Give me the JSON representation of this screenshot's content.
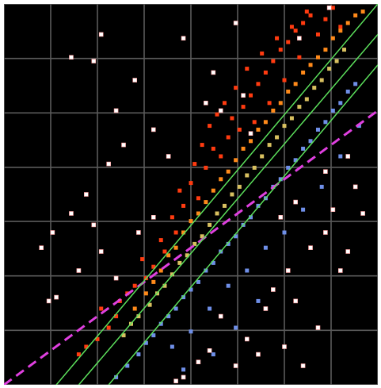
{
  "chart_data": {
    "type": "scatter",
    "title": "",
    "xlabel": "",
    "ylabel": "",
    "xlim": [
      0,
      100
    ],
    "ylim": [
      0,
      100
    ],
    "grid": true,
    "x_ticks": [
      0,
      12.5,
      25,
      37.5,
      50,
      62.5,
      75,
      87.5,
      100
    ],
    "y_ticks": [
      0,
      14.3,
      28.6,
      42.9,
      57.1,
      71.4,
      85.7,
      100
    ],
    "series": [
      {
        "color": "#ff3b10",
        "points": [
          [
            43,
            35
          ],
          [
            46,
            40
          ],
          [
            48,
            47
          ],
          [
            50,
            53
          ],
          [
            52,
            49
          ],
          [
            54,
            57
          ],
          [
            56,
            62
          ],
          [
            58,
            60
          ],
          [
            60,
            65
          ],
          [
            61,
            70
          ],
          [
            63,
            67
          ],
          [
            64,
            73
          ],
          [
            66,
            76
          ],
          [
            67,
            69
          ],
          [
            68,
            79
          ],
          [
            70,
            82
          ],
          [
            71,
            74
          ],
          [
            72,
            85
          ],
          [
            74,
            88
          ],
          [
            75,
            80
          ],
          [
            76,
            90
          ],
          [
            78,
            93
          ],
          [
            79,
            86
          ],
          [
            80,
            95
          ],
          [
            82,
            97
          ],
          [
            84,
            92
          ],
          [
            86,
            96
          ],
          [
            88,
            99
          ],
          [
            90,
            94
          ],
          [
            38,
            28
          ],
          [
            40,
            31
          ],
          [
            42,
            38
          ],
          [
            45,
            44
          ],
          [
            47,
            51
          ],
          [
            51,
            58
          ],
          [
            53,
            63
          ],
          [
            55,
            68
          ],
          [
            57,
            71
          ],
          [
            59,
            74
          ],
          [
            62,
            78
          ],
          [
            65,
            83
          ],
          [
            69,
            87
          ],
          [
            73,
            91
          ],
          [
            77,
            94
          ],
          [
            81,
            98
          ],
          [
            33,
            24
          ],
          [
            35,
            26
          ],
          [
            37,
            33
          ],
          [
            30,
            18
          ],
          [
            28,
            15
          ],
          [
            25,
            12
          ],
          [
            22,
            10
          ],
          [
            20,
            8
          ],
          [
            26,
            20
          ],
          [
            31,
            22
          ]
        ]
      },
      {
        "color": "#ff8a1a",
        "points": [
          [
            35,
            20
          ],
          [
            38,
            24
          ],
          [
            40,
            27
          ],
          [
            42,
            30
          ],
          [
            44,
            34
          ],
          [
            46,
            36
          ],
          [
            48,
            40
          ],
          [
            50,
            43
          ],
          [
            52,
            45
          ],
          [
            54,
            48
          ],
          [
            56,
            51
          ],
          [
            58,
            54
          ],
          [
            60,
            56
          ],
          [
            62,
            59
          ],
          [
            64,
            62
          ],
          [
            66,
            64
          ],
          [
            68,
            67
          ],
          [
            70,
            69
          ],
          [
            72,
            72
          ],
          [
            74,
            74
          ],
          [
            76,
            77
          ],
          [
            78,
            79
          ],
          [
            80,
            82
          ],
          [
            82,
            84
          ],
          [
            84,
            86
          ],
          [
            86,
            88
          ],
          [
            88,
            91
          ],
          [
            90,
            93
          ],
          [
            92,
            95
          ],
          [
            94,
            97
          ],
          [
            96,
            98
          ]
        ]
      },
      {
        "color": "#d8c060",
        "points": [
          [
            32,
            13
          ],
          [
            34,
            16
          ],
          [
            36,
            18
          ],
          [
            39,
            21
          ],
          [
            41,
            24
          ],
          [
            43,
            26
          ],
          [
            45,
            29
          ],
          [
            47,
            32
          ],
          [
            49,
            34
          ],
          [
            51,
            37
          ],
          [
            53,
            39
          ],
          [
            55,
            42
          ],
          [
            57,
            45
          ],
          [
            59,
            47
          ],
          [
            61,
            50
          ],
          [
            63,
            52
          ],
          [
            65,
            55
          ],
          [
            67,
            57
          ],
          [
            69,
            60
          ],
          [
            71,
            63
          ],
          [
            73,
            65
          ],
          [
            75,
            68
          ],
          [
            77,
            70
          ],
          [
            79,
            73
          ],
          [
            81,
            75
          ],
          [
            83,
            78
          ],
          [
            85,
            80
          ],
          [
            87,
            83
          ],
          [
            89,
            85
          ],
          [
            91,
            88
          ]
        ]
      },
      {
        "color": "#6f8fe8",
        "points": [
          [
            30,
            2
          ],
          [
            33,
            5
          ],
          [
            36,
            8
          ],
          [
            38,
            11
          ],
          [
            40,
            13
          ],
          [
            42,
            16
          ],
          [
            44,
            18
          ],
          [
            46,
            20
          ],
          [
            48,
            23
          ],
          [
            50,
            25
          ],
          [
            52,
            27
          ],
          [
            54,
            30
          ],
          [
            56,
            32
          ],
          [
            58,
            35
          ],
          [
            60,
            37
          ],
          [
            62,
            39
          ],
          [
            64,
            42
          ],
          [
            66,
            44
          ],
          [
            68,
            47
          ],
          [
            70,
            49
          ],
          [
            72,
            52
          ],
          [
            74,
            54
          ],
          [
            76,
            57
          ],
          [
            78,
            59
          ],
          [
            80,
            62
          ],
          [
            82,
            64
          ],
          [
            84,
            67
          ],
          [
            86,
            69
          ],
          [
            88,
            72
          ],
          [
            90,
            74
          ],
          [
            92,
            77
          ],
          [
            94,
            79
          ],
          [
            45,
            10
          ],
          [
            50,
            14
          ],
          [
            55,
            20
          ],
          [
            60,
            26
          ],
          [
            65,
            30
          ],
          [
            70,
            36
          ],
          [
            75,
            40
          ],
          [
            80,
            46
          ],
          [
            85,
            52
          ],
          [
            90,
            60
          ],
          [
            95,
            68
          ],
          [
            48,
            4
          ],
          [
            56,
            8
          ],
          [
            62,
            15
          ],
          [
            68,
            22
          ]
        ]
      },
      {
        "color": "#ffffff",
        "points": [
          [
            26,
            92
          ],
          [
            18,
            86
          ],
          [
            24,
            85
          ],
          [
            35,
            80
          ],
          [
            48,
            91
          ],
          [
            56,
            82
          ],
          [
            62,
            95
          ],
          [
            79,
            91
          ],
          [
            87,
            99
          ],
          [
            30,
            72
          ],
          [
            32,
            63
          ],
          [
            40,
            67
          ],
          [
            44,
            60
          ],
          [
            28,
            58
          ],
          [
            22,
            50
          ],
          [
            18,
            45
          ],
          [
            13,
            40
          ],
          [
            10,
            36
          ],
          [
            26,
            35
          ],
          [
            14,
            23
          ],
          [
            12,
            22
          ],
          [
            30,
            28
          ],
          [
            36,
            40
          ],
          [
            40,
            44
          ],
          [
            24,
            42
          ],
          [
            20,
            30
          ],
          [
            58,
            72
          ],
          [
            64,
            76
          ],
          [
            66,
            66
          ],
          [
            54,
            74
          ],
          [
            70,
            20
          ],
          [
            72,
            25
          ],
          [
            76,
            30
          ],
          [
            78,
            22
          ],
          [
            82,
            36
          ],
          [
            86,
            40
          ],
          [
            88,
            46
          ],
          [
            90,
            30
          ],
          [
            92,
            35
          ],
          [
            84,
            15
          ],
          [
            65,
            12
          ],
          [
            68,
            8
          ],
          [
            62,
            5
          ],
          [
            75,
            10
          ],
          [
            80,
            5
          ],
          [
            48,
            2
          ],
          [
            52,
            6
          ],
          [
            55,
            9
          ],
          [
            46,
            1
          ],
          [
            58,
            18
          ],
          [
            74,
            44
          ],
          [
            78,
            48
          ],
          [
            86,
            56
          ],
          [
            92,
            60
          ],
          [
            94,
            52
          ],
          [
            96,
            45
          ]
        ]
      }
    ],
    "lines": [
      {
        "name": "",
        "style": "dashed",
        "color": "#e040e0",
        "x": [
          0,
          100
        ],
        "y": [
          0,
          72
        ]
      },
      {
        "name": "",
        "style": "solid",
        "color": "#5ce05c",
        "x": [
          14,
          100
        ],
        "y": [
          0,
          100
        ]
      },
      {
        "name": "",
        "style": "solid",
        "color": "#5ce05c",
        "x": [
          20,
          100
        ],
        "y": [
          0,
          92
        ]
      },
      {
        "name": "",
        "style": "solid",
        "color": "#5ce05c",
        "x": [
          28,
          100
        ],
        "y": [
          0,
          84
        ]
      }
    ]
  }
}
